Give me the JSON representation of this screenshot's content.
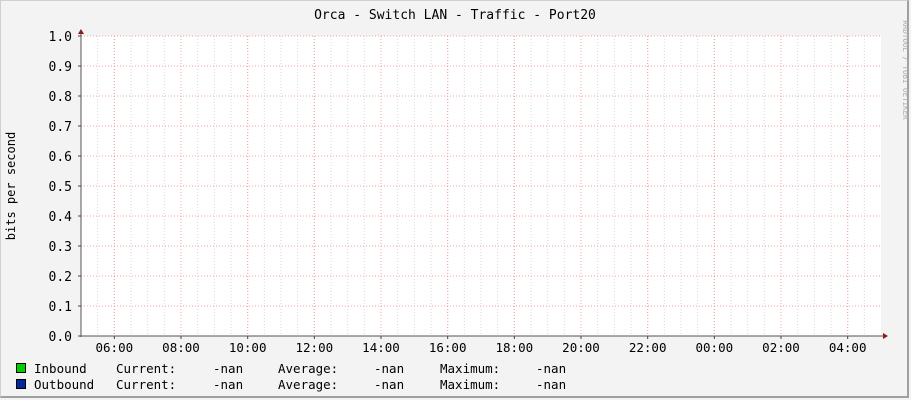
{
  "chart_data": {
    "type": "line",
    "title": "Orca - Switch LAN - Traffic - Port20",
    "ylabel": "bits per second",
    "xlabel": "",
    "ylim": [
      0,
      1.0
    ],
    "y_ticks": [
      "0.0",
      "0.1",
      "0.2",
      "0.3",
      "0.4",
      "0.5",
      "0.6",
      "0.7",
      "0.8",
      "0.9",
      "1.0"
    ],
    "x_range": [
      "05:00",
      "05:00 (+1 day)"
    ],
    "x_ticks": [
      "06:00",
      "08:00",
      "10:00",
      "12:00",
      "14:00",
      "16:00",
      "18:00",
      "20:00",
      "22:00",
      "00:00",
      "02:00",
      "04:00"
    ],
    "grid": true,
    "series": [
      {
        "name": "Inbound",
        "color": "#00cc00",
        "values": []
      },
      {
        "name": "Outbound",
        "color": "#002a97",
        "values": []
      }
    ],
    "watermark": "RRDTOOL / TOBI OETIKER"
  },
  "legend": [
    {
      "name": "Inbound",
      "color": "#00cc00",
      "current_label": "Current:",
      "current": "-nan",
      "average_label": "Average:",
      "average": "-nan",
      "maximum_label": "Maximum:",
      "maximum": "-nan"
    },
    {
      "name": "Outbound",
      "color": "#002a97",
      "current_label": "Current:",
      "current": "-nan",
      "average_label": "Average:",
      "average": "-nan",
      "maximum_label": "Maximum:",
      "maximum": "-nan"
    }
  ]
}
